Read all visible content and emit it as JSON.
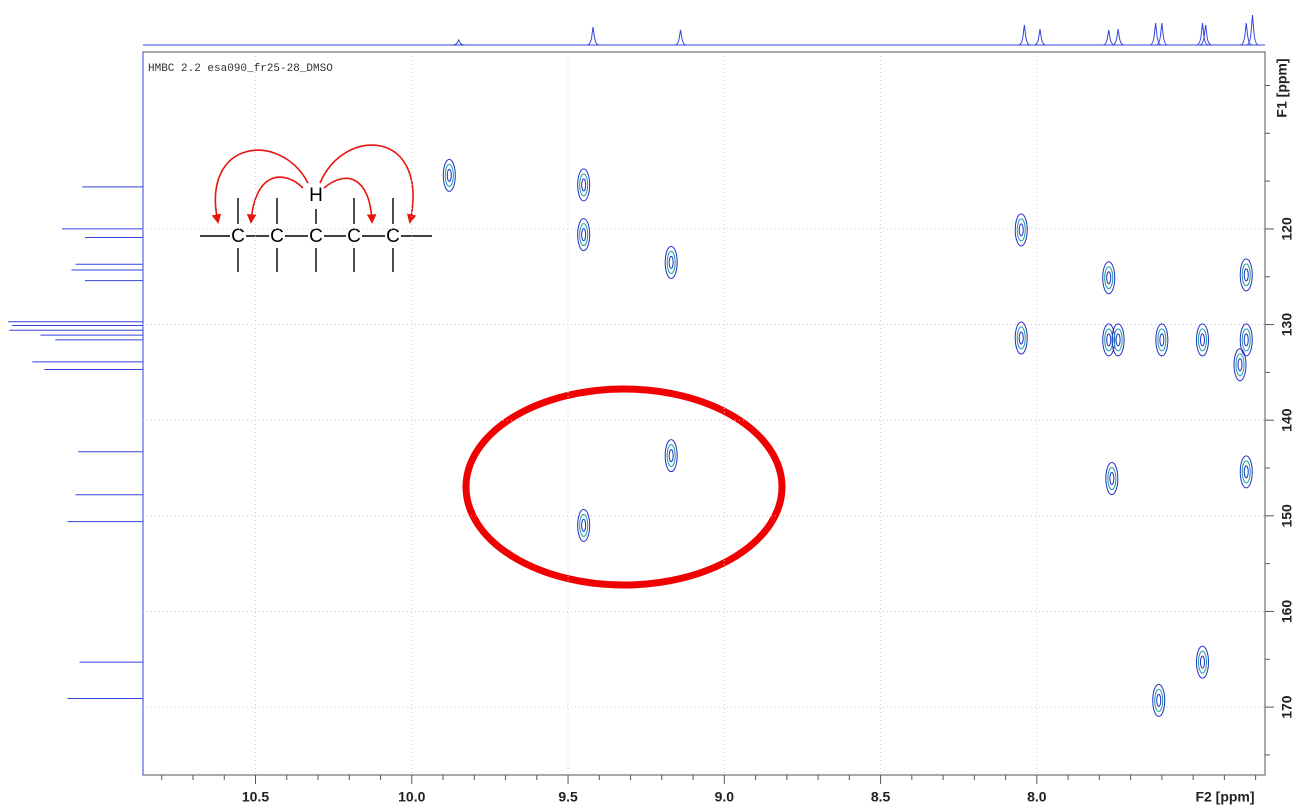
{
  "chart_data": {
    "type": "hmbc",
    "annotation": "HMBC 2.2  esa090_fr25-28_DMSO",
    "xlabel": "F2 [ppm]",
    "ylabel": "F1 [ppm]",
    "xlim": [
      10.86,
      7.27
    ],
    "ylim": [
      101.5,
      177.1
    ],
    "xticks": [
      10.5,
      {
        "value": 10.0,
        "label": "10.0"
      },
      9.5,
      {
        "value": 9.0,
        "label": "9.0"
      },
      8.5,
      {
        "value": 8.0,
        "label": "8.0"
      }
    ],
    "xminor": [
      10.8,
      10.7,
      10.6,
      10.4,
      10.3,
      10.2,
      10.1,
      9.9,
      9.8,
      9.7,
      9.6,
      9.4,
      9.3,
      9.2,
      9.1,
      8.9,
      8.8,
      8.7,
      8.6,
      8.4,
      8.3,
      8.2,
      8.1,
      7.9,
      7.8,
      7.7,
      7.6,
      7.5,
      7.4,
      7.3
    ],
    "yticks": [
      120,
      130,
      140,
      150,
      160,
      170
    ],
    "yminor": [
      105,
      110,
      115,
      125,
      135,
      145,
      155,
      165,
      175
    ],
    "grid": true,
    "colors": [
      "#1f2fc8",
      "#1b9c9c"
    ],
    "peaks": {
      "x": [
        9.88,
        9.45,
        9.45,
        9.17,
        9.17,
        9.45,
        8.05,
        8.05,
        7.77,
        7.77,
        7.74,
        7.6,
        7.47,
        7.33,
        7.33,
        7.35,
        7.76,
        7.33,
        7.47,
        7.61
      ],
      "y": [
        114.4,
        115.4,
        120.6,
        123.5,
        143.7,
        151.0,
        120.1,
        131.4,
        125.1,
        131.6,
        131.6,
        131.6,
        131.6,
        124.8,
        131.6,
        134.2,
        146.1,
        145.4,
        165.3,
        169.3
      ]
    },
    "top_projection": {
      "x": [
        9.85,
        9.42,
        9.14,
        8.04,
        7.99,
        7.77,
        7.74,
        7.62,
        7.6,
        7.47,
        7.46,
        7.33,
        7.31
      ],
      "intensity": [
        17,
        60,
        50,
        67,
        53,
        50,
        53,
        73,
        73,
        73,
        67,
        73,
        100
      ]
    },
    "left_projection": {
      "y": [
        115.6,
        120.0,
        120.9,
        123.7,
        124.3,
        125.4,
        129.7,
        130.1,
        130.6,
        131.1,
        131.6,
        133.9,
        134.7,
        143.3,
        147.8,
        150.6,
        165.3,
        169.1
      ],
      "intensity": [
        45,
        60,
        43,
        50,
        53,
        43,
        100,
        97,
        99,
        76,
        65,
        82,
        73,
        48,
        50,
        56,
        47,
        56
      ]
    },
    "structure": {
      "h": "H",
      "atoms": [
        "C",
        "C",
        "C",
        "C",
        "C"
      ]
    }
  }
}
